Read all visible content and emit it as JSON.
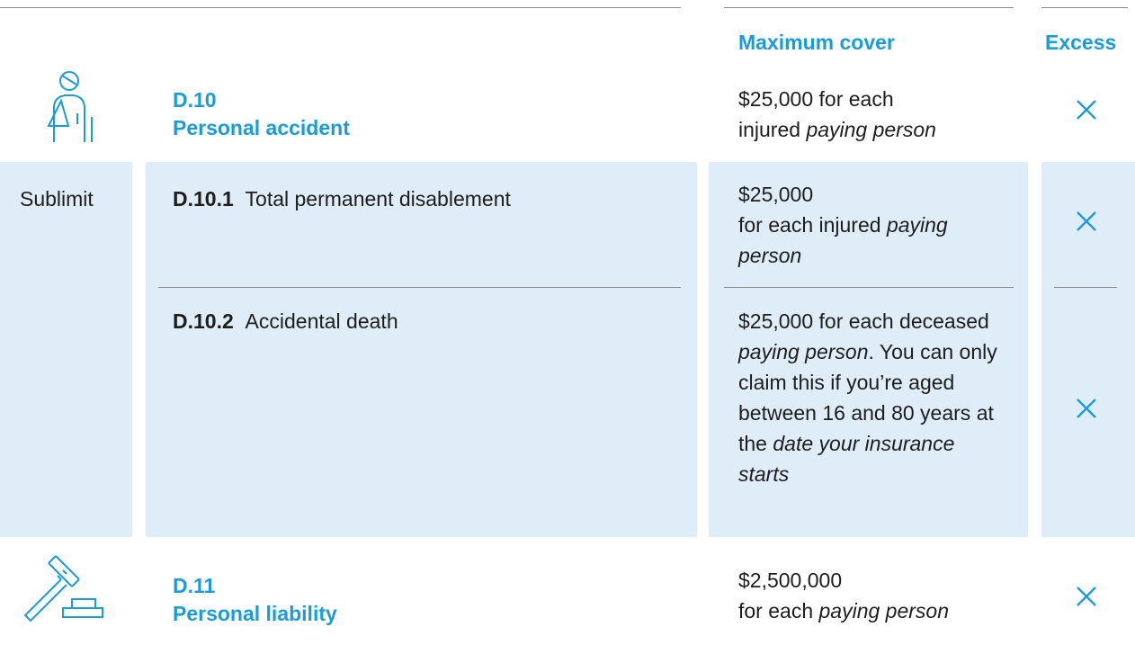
{
  "header": {
    "cover": "Maximum cover",
    "excess": "Excess"
  },
  "sections": [
    {
      "code": "D.10",
      "title": "Personal accident",
      "cover": [
        {
          "text": "$25,000 for each\ninjured "
        },
        {
          "text": "paying person",
          "em": true
        }
      ]
    },
    {
      "code": "D.11",
      "title": "Personal liability",
      "cover": [
        {
          "text": "$2,500,000\nfor each "
        },
        {
          "text": "paying person",
          "em": true
        }
      ]
    }
  ],
  "sublimit": {
    "label": "Sublimit",
    "items": [
      {
        "code": "D.10.1",
        "title": "Total permanent disablement",
        "cover": [
          {
            "text": "$25,000\nfor each injured "
          },
          {
            "text": "paying person",
            "em": true
          }
        ]
      },
      {
        "code": "D.10.2",
        "title": "Accidental death",
        "cover": [
          {
            "text": "$25,000 for each deceased "
          },
          {
            "text": "paying person",
            "em": true
          },
          {
            "text": ". You can only claim this if you’re aged between 16 and 80 years at the "
          },
          {
            "text": "date your insurance starts",
            "em": true
          }
        ]
      }
    ]
  }
}
